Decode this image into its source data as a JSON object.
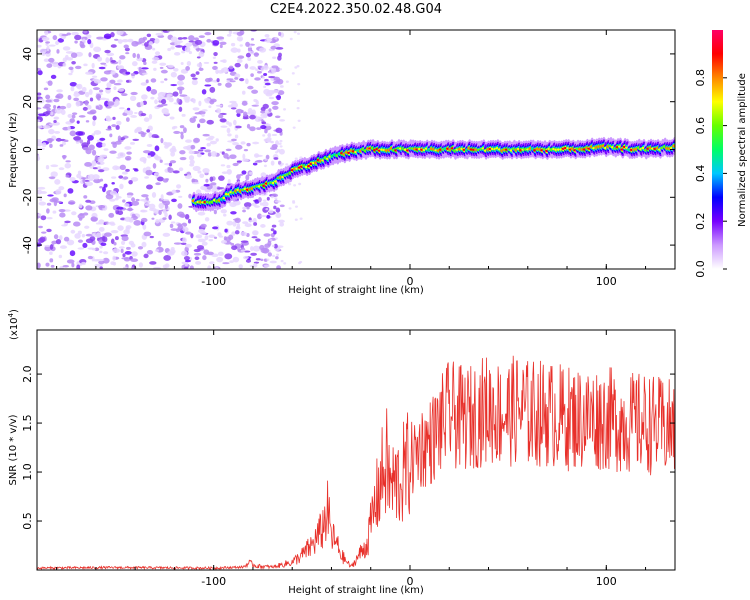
{
  "figure": {
    "title": "C2E4.2022.350.02.48.G04"
  },
  "chart_data": [
    {
      "type": "heatmap",
      "title": "C2E4.2022.350.02.48.G04",
      "xlabel": "Height of straight line (km)",
      "ylabel": "Frequency (Hz)",
      "xlim": [
        -190,
        135
      ],
      "ylim": [
        -50,
        50
      ],
      "x_ticks": [
        -100,
        0,
        100
      ],
      "x_tick_labels": [
        "-100",
        "0",
        "100"
      ],
      "y_ticks": [
        -40,
        -20,
        0,
        20,
        40
      ],
      "y_tick_labels": [
        "-40",
        "-20",
        "0",
        "20",
        "40"
      ],
      "colorbar": {
        "label": "Normalized spectral amplitude",
        "range": [
          0,
          1
        ],
        "ticks": [
          0.0,
          0.2,
          0.4,
          0.6,
          0.8
        ],
        "tick_labels": [
          "0.0",
          "0.2",
          "0.4",
          "0.6",
          "0.8"
        ],
        "colors": [
          "#ffffff",
          "#cc99ff",
          "#7700ff",
          "#0000ff",
          "#00c8ff",
          "#00ff66",
          "#66ff00",
          "#ffff00",
          "#ff8800",
          "#ff0000",
          "#ff0066"
        ]
      },
      "noise_region_x": [
        -190,
        -80
      ],
      "signal_ridge": {
        "x": [
          -110,
          -100,
          -90,
          -80,
          -70,
          -60,
          -50,
          -40,
          -30,
          -20,
          -10,
          0,
          20,
          40,
          60,
          80,
          100,
          120,
          135
        ],
        "frequency": [
          -22,
          -22,
          -18,
          -16,
          -14,
          -9,
          -6,
          -3,
          -1,
          0,
          0,
          0,
          0,
          0,
          0,
          0,
          1,
          0,
          1
        ]
      },
      "grid": false
    },
    {
      "type": "line",
      "xlabel": "Height of straight line (km)",
      "ylabel": "SNR (10 * v/v)",
      "y_scale_label": "(x10",
      "y_scale_exponent": "4",
      "y_scale_close": ")",
      "xlim": [
        -190,
        135
      ],
      "ylim": [
        0,
        24500
      ],
      "x_ticks": [
        -100,
        0,
        100
      ],
      "x_tick_labels": [
        "-100",
        "0",
        "100"
      ],
      "y_ticks": [
        5000,
        10000,
        15000,
        20000
      ],
      "y_tick_labels": [
        "0.5",
        "1.0",
        "1.5",
        "2.0"
      ],
      "series": [
        {
          "color": "#e8302a",
          "x": [
            -190,
            -150,
            -100,
            -85,
            -82,
            -78,
            -70,
            -60,
            -55,
            -50,
            -45,
            -42,
            -40,
            -37,
            -35,
            -30,
            -25,
            -22,
            -18,
            -15,
            -12,
            -10,
            -5,
            0,
            5,
            10,
            15,
            20,
            25,
            30,
            35,
            40,
            45,
            50,
            55,
            60,
            70,
            80,
            90,
            100,
            110,
            120,
            130,
            135
          ],
          "y": [
            200,
            250,
            200,
            300,
            700,
            400,
            300,
            800,
            1500,
            2500,
            4000,
            6000,
            3500,
            2500,
            1500,
            300,
            1800,
            2600,
            6500,
            9000,
            11000,
            8500,
            9200,
            11000,
            12500,
            13000,
            14500,
            16000,
            15500,
            15500,
            16000,
            16500,
            16000,
            16000,
            16500,
            16000,
            16000,
            15500,
            15500,
            15500,
            15000,
            15000,
            14500,
            14500
          ]
        }
      ],
      "grid": false
    }
  ]
}
